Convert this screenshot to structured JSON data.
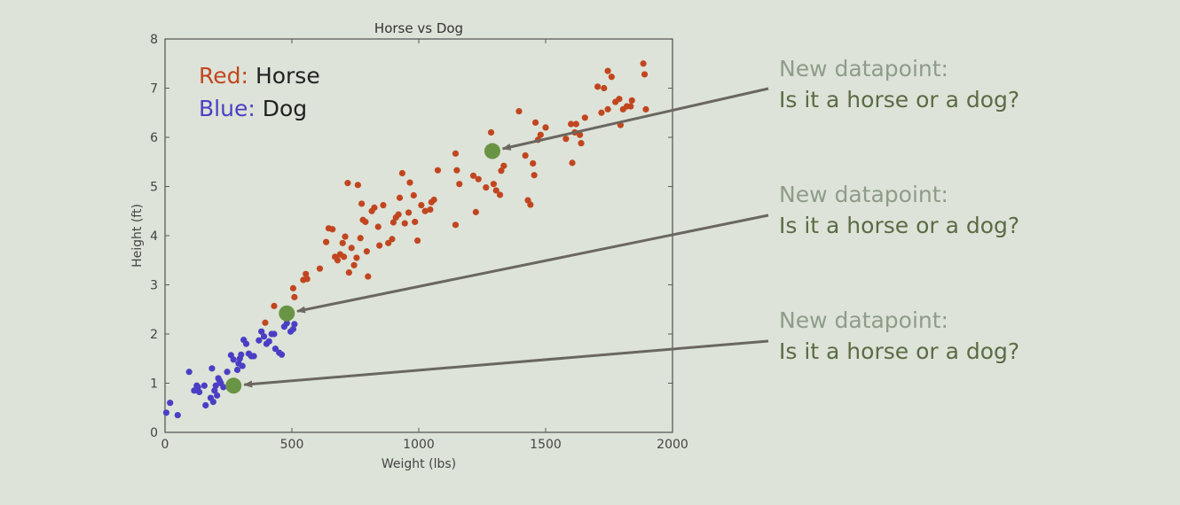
{
  "chart_data": {
    "type": "scatter",
    "title": "Horse vs Dog",
    "xlabel": "Weight (lbs)",
    "ylabel": "Height (ft)",
    "xlim": [
      0,
      2000
    ],
    "ylim": [
      0,
      8
    ],
    "xticks": [
      0,
      500,
      1000,
      1500,
      2000
    ],
    "yticks": [
      0,
      1,
      2,
      3,
      4,
      5,
      6,
      7,
      8
    ],
    "grid": false,
    "legend": {
      "placement": "top-left",
      "entries": [
        {
          "color_word": "Red",
          "separator": ":",
          "label": "Horse",
          "color": "#c1461f"
        },
        {
          "color_word": "Blue",
          "separator": ":",
          "label": "Dog",
          "color": "#4a3fc4"
        }
      ]
    },
    "series": [
      {
        "name": "Horse",
        "color": "#c1461f",
        "points": [
          [
            395,
            2.23
          ],
          [
            430,
            2.57
          ],
          [
            505,
            2.93
          ],
          [
            510,
            2.75
          ],
          [
            545,
            3.1
          ],
          [
            555,
            3.22
          ],
          [
            560,
            3.12
          ],
          [
            610,
            3.33
          ],
          [
            635,
            3.87
          ],
          [
            645,
            4.15
          ],
          [
            660,
            4.13
          ],
          [
            670,
            3.57
          ],
          [
            680,
            3.5
          ],
          [
            690,
            3.62
          ],
          [
            700,
            3.85
          ],
          [
            705,
            3.57
          ],
          [
            710,
            3.98
          ],
          [
            720,
            5.07
          ],
          [
            725,
            3.25
          ],
          [
            735,
            3.75
          ],
          [
            745,
            3.4
          ],
          [
            755,
            3.55
          ],
          [
            760,
            5.03
          ],
          [
            770,
            3.95
          ],
          [
            775,
            4.65
          ],
          [
            780,
            4.32
          ],
          [
            790,
            4.28
          ],
          [
            795,
            3.68
          ],
          [
            800,
            3.17
          ],
          [
            815,
            4.5
          ],
          [
            825,
            4.57
          ],
          [
            840,
            4.18
          ],
          [
            845,
            3.8
          ],
          [
            860,
            4.62
          ],
          [
            880,
            3.85
          ],
          [
            895,
            3.93
          ],
          [
            900,
            4.27
          ],
          [
            910,
            4.37
          ],
          [
            920,
            4.43
          ],
          [
            925,
            4.77
          ],
          [
            935,
            5.27
          ],
          [
            945,
            4.25
          ],
          [
            960,
            4.47
          ],
          [
            965,
            5.08
          ],
          [
            980,
            4.82
          ],
          [
            985,
            4.28
          ],
          [
            995,
            3.9
          ],
          [
            1010,
            4.62
          ],
          [
            1025,
            4.5
          ],
          [
            1045,
            4.53
          ],
          [
            1050,
            4.68
          ],
          [
            1060,
            4.73
          ],
          [
            1075,
            5.33
          ],
          [
            1145,
            4.22
          ],
          [
            1145,
            5.67
          ],
          [
            1150,
            5.33
          ],
          [
            1160,
            5.05
          ],
          [
            1215,
            5.22
          ],
          [
            1225,
            4.48
          ],
          [
            1235,
            5.15
          ],
          [
            1265,
            4.98
          ],
          [
            1285,
            6.1
          ],
          [
            1295,
            5.05
          ],
          [
            1305,
            4.92
          ],
          [
            1320,
            4.83
          ],
          [
            1325,
            5.32
          ],
          [
            1335,
            5.42
          ],
          [
            1395,
            6.53
          ],
          [
            1420,
            5.63
          ],
          [
            1430,
            4.72
          ],
          [
            1440,
            4.63
          ],
          [
            1450,
            5.47
          ],
          [
            1455,
            5.23
          ],
          [
            1460,
            6.3
          ],
          [
            1470,
            5.95
          ],
          [
            1480,
            6.05
          ],
          [
            1500,
            6.2
          ],
          [
            1580,
            5.97
          ],
          [
            1600,
            6.27
          ],
          [
            1605,
            5.48
          ],
          [
            1615,
            6.1
          ],
          [
            1620,
            6.27
          ],
          [
            1635,
            6.05
          ],
          [
            1640,
            5.88
          ],
          [
            1655,
            6.4
          ],
          [
            1705,
            7.03
          ],
          [
            1720,
            6.5
          ],
          [
            1730,
            7.0
          ],
          [
            1745,
            7.35
          ],
          [
            1745,
            6.57
          ],
          [
            1760,
            7.23
          ],
          [
            1775,
            6.72
          ],
          [
            1790,
            6.78
          ],
          [
            1795,
            6.25
          ],
          [
            1805,
            6.57
          ],
          [
            1820,
            6.63
          ],
          [
            1835,
            6.63
          ],
          [
            1840,
            6.75
          ],
          [
            1885,
            7.5
          ],
          [
            1890,
            7.28
          ],
          [
            1895,
            6.57
          ]
        ]
      },
      {
        "name": "Dog",
        "color": "#4a3fc4",
        "points": [
          [
            5,
            0.4
          ],
          [
            20,
            0.6
          ],
          [
            50,
            0.35
          ],
          [
            95,
            1.23
          ],
          [
            115,
            0.85
          ],
          [
            125,
            0.95
          ],
          [
            130,
            0.92
          ],
          [
            135,
            0.82
          ],
          [
            155,
            0.95
          ],
          [
            160,
            0.55
          ],
          [
            180,
            0.7
          ],
          [
            185,
            1.3
          ],
          [
            190,
            0.62
          ],
          [
            195,
            0.85
          ],
          [
            200,
            0.95
          ],
          [
            205,
            0.75
          ],
          [
            210,
            1.1
          ],
          [
            215,
            1.05
          ],
          [
            220,
            1.0
          ],
          [
            230,
            0.92
          ],
          [
            245,
            1.23
          ],
          [
            260,
            1.57
          ],
          [
            270,
            1.48
          ],
          [
            285,
            1.27
          ],
          [
            290,
            1.4
          ],
          [
            295,
            1.5
          ],
          [
            300,
            1.58
          ],
          [
            305,
            1.35
          ],
          [
            310,
            1.88
          ],
          [
            320,
            1.8
          ],
          [
            330,
            1.6
          ],
          [
            340,
            1.55
          ],
          [
            350,
            1.55
          ],
          [
            370,
            1.87
          ],
          [
            380,
            2.05
          ],
          [
            390,
            1.95
          ],
          [
            400,
            1.8
          ],
          [
            410,
            1.85
          ],
          [
            420,
            2.0
          ],
          [
            430,
            2.0
          ],
          [
            435,
            1.7
          ],
          [
            450,
            1.62
          ],
          [
            460,
            1.58
          ],
          [
            470,
            2.15
          ],
          [
            480,
            2.22
          ],
          [
            495,
            2.05
          ],
          [
            505,
            2.1
          ],
          [
            510,
            2.2
          ]
        ]
      },
      {
        "name": "New datapoint",
        "color": "#6a9445",
        "points": [
          [
            1290,
            5.72
          ],
          [
            480,
            2.42
          ],
          [
            270,
            0.95
          ]
        ]
      }
    ]
  },
  "annotations": [
    {
      "line1": "New datapoint:",
      "line2": "Is it a horse or a dog?"
    },
    {
      "line1": "New datapoint:",
      "line2": "Is it a horse or a dog?"
    },
    {
      "line1": "New datapoint:",
      "line2": "Is it a horse or a dog?"
    }
  ],
  "colors": {
    "background": "#dde3d8",
    "axis": "#5a5a5a",
    "arrow": "#6b6661",
    "annotation_gray": "#8f9c8a",
    "annotation_olive": "#5b6b45"
  }
}
